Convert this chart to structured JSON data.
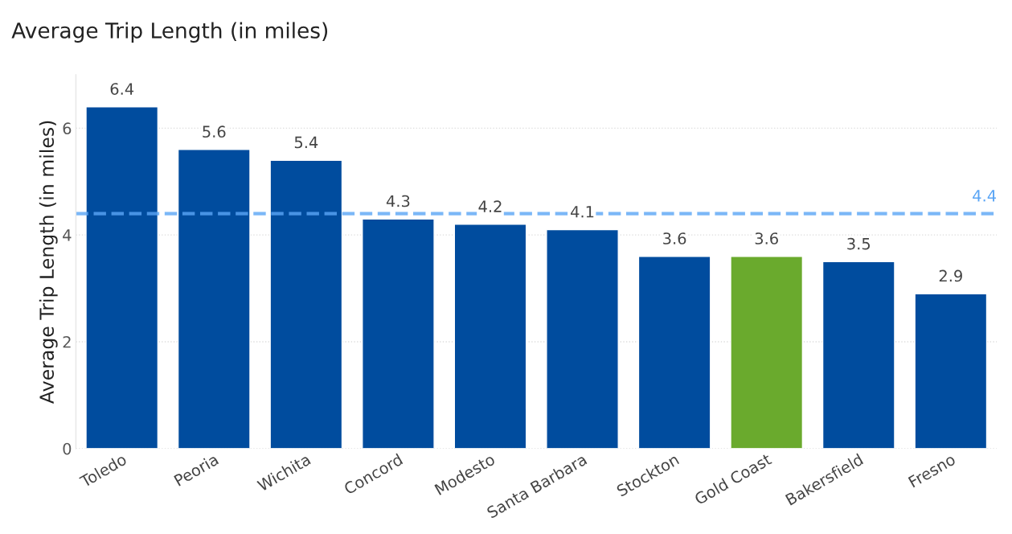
{
  "chart_data": {
    "type": "bar",
    "title": "Average Trip Length (in miles)",
    "ylabel": "Average Trip Length (in miles)",
    "categories": [
      "Toledo",
      "Peoria",
      "Wichita",
      "Concord",
      "Modesto",
      "Santa Barbara",
      "Stockton",
      "Gold Coast",
      "Bakersfield",
      "Fresno"
    ],
    "values": [
      6.4,
      5.6,
      5.4,
      4.3,
      4.2,
      4.1,
      3.6,
      3.6,
      3.5,
      2.9
    ],
    "colors": [
      "#004c9e",
      "#004c9e",
      "#004c9e",
      "#004c9e",
      "#004c9e",
      "#004c9e",
      "#004c9e",
      "#6aaa2d",
      "#004c9e",
      "#004c9e"
    ],
    "ylim": [
      0,
      7
    ],
    "yticks": [
      0,
      2,
      4,
      6
    ],
    "grid": "y",
    "data_labels": true,
    "ref_lines": [
      {
        "axis": "y",
        "value": 4.4,
        "label": "4.4",
        "color": "#5aa5f5",
        "line_style": "dashed"
      }
    ]
  }
}
